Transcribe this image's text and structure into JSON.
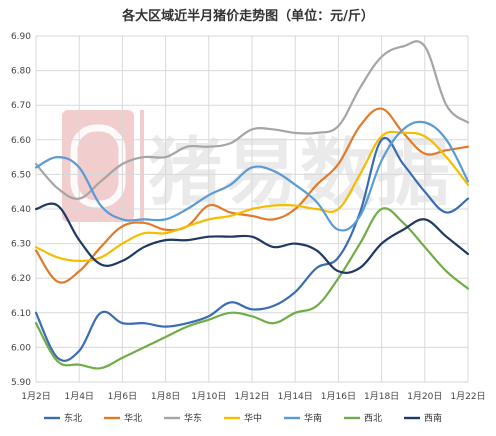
{
  "chart_data": {
    "type": "line",
    "title": "各大区域近半月猪价走势图（单位：元/斤）",
    "watermark": "猪易数据",
    "x": [
      "1月2日",
      "1月3日",
      "1月4日",
      "1月5日",
      "1月6日",
      "1月7日",
      "1月8日",
      "1月9日",
      "1月10日",
      "1月11日",
      "1月12日",
      "1月13日",
      "1月14日",
      "1月15日",
      "1月16日",
      "1月17日",
      "1月18日",
      "1月19日",
      "1月20日",
      "1月21日",
      "1月22日"
    ],
    "x_tick_labels": [
      "1月2日",
      "1月4日",
      "1月6日",
      "1月8日",
      "1月10日",
      "1月12日",
      "1月14日",
      "1月16日",
      "1月18日",
      "1月20日",
      "1月22日"
    ],
    "ylim": [
      5.9,
      6.9
    ],
    "y_ticks": [
      "5.90",
      "6.00",
      "6.10",
      "6.20",
      "6.30",
      "6.40",
      "6.50",
      "6.60",
      "6.70",
      "6.80",
      "6.90"
    ],
    "grid": true,
    "legend_position": "bottom",
    "series": [
      {
        "name": "东北",
        "color": "#3a6cb1",
        "values": [
          6.1,
          5.97,
          5.99,
          6.1,
          6.07,
          6.07,
          6.06,
          6.07,
          6.09,
          6.13,
          6.11,
          6.12,
          6.16,
          6.23,
          6.26,
          6.39,
          6.6,
          6.53,
          6.45,
          6.39,
          6.43
        ]
      },
      {
        "name": "华北",
        "color": "#e07b2a",
        "values": [
          6.28,
          6.19,
          6.22,
          6.29,
          6.35,
          6.36,
          6.34,
          6.35,
          6.41,
          6.39,
          6.38,
          6.37,
          6.4,
          6.47,
          6.53,
          6.64,
          6.69,
          6.62,
          6.56,
          6.57,
          6.58
        ]
      },
      {
        "name": "华东",
        "color": "#a5a5a5",
        "values": [
          6.53,
          6.46,
          6.43,
          6.48,
          6.53,
          6.55,
          6.55,
          6.58,
          6.58,
          6.59,
          6.63,
          6.63,
          6.62,
          6.62,
          6.64,
          6.75,
          6.84,
          6.87,
          6.87,
          6.7,
          6.65
        ]
      },
      {
        "name": "华中",
        "color": "#f5bc00",
        "values": [
          6.29,
          6.26,
          6.25,
          6.26,
          6.3,
          6.33,
          6.33,
          6.35,
          6.37,
          6.38,
          6.4,
          6.41,
          6.41,
          6.4,
          6.4,
          6.5,
          6.61,
          6.62,
          6.61,
          6.55,
          6.47
        ]
      },
      {
        "name": "华南",
        "color": "#5b9bd5",
        "values": [
          6.52,
          6.55,
          6.52,
          6.41,
          6.37,
          6.37,
          6.37,
          6.4,
          6.44,
          6.47,
          6.52,
          6.51,
          6.47,
          6.42,
          6.34,
          6.38,
          6.54,
          6.63,
          6.65,
          6.6,
          6.48
        ]
      },
      {
        "name": "西北",
        "color": "#70ad47",
        "values": [
          6.07,
          5.96,
          5.95,
          5.94,
          5.97,
          6.0,
          6.03,
          6.06,
          6.08,
          6.1,
          6.09,
          6.07,
          6.1,
          6.12,
          6.2,
          6.3,
          6.4,
          6.36,
          6.29,
          6.22,
          6.17
        ]
      },
      {
        "name": "西南",
        "color": "#1f3864",
        "values": [
          6.4,
          6.41,
          6.31,
          6.24,
          6.25,
          6.29,
          6.31,
          6.31,
          6.32,
          6.32,
          6.32,
          6.29,
          6.3,
          6.28,
          6.22,
          6.23,
          6.3,
          6.34,
          6.37,
          6.32,
          6.27
        ]
      }
    ]
  }
}
